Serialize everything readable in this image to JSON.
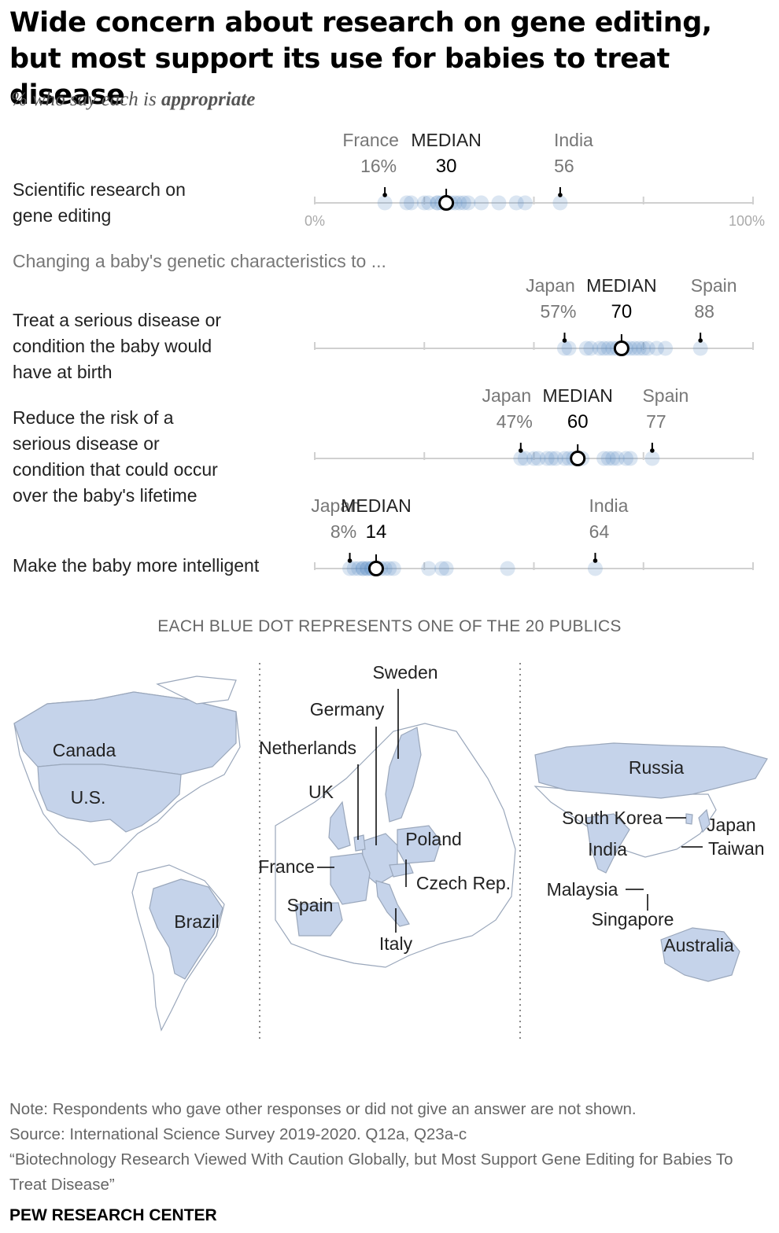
{
  "title": "Wide concern about research on gene editing, but most support its use for babies to treat disease",
  "subtitle_prefix": "% who say each is ",
  "subtitle_emph": "appropriate",
  "group_label": "Changing a baby's genetic characteristics to ...",
  "chart_caption": "EACH BLUE DOT REPRESENTS ONE OF THE 20 PUBLICS",
  "colors": {
    "dot": "#5b8ec4",
    "median_stroke": "#000000",
    "axis": "#d0d0d0",
    "map_fill": "#c5d3ea",
    "map_stroke": "#9aa7bb"
  },
  "chart_data": {
    "type": "scatter",
    "xlim": [
      0,
      100
    ],
    "axis_tick_labels": [
      "0%",
      "100%"
    ],
    "median_label": "MEDIAN",
    "rows": [
      {
        "label_lines": [
          "Scientific research on",
          "gene editing"
        ],
        "low": {
          "country": "France",
          "value_label": "16%",
          "value": 16
        },
        "median": {
          "value_label": "30",
          "value": 30
        },
        "high": {
          "country": "India",
          "value_label": "56",
          "value": 56
        },
        "values": [
          16,
          21,
          22,
          25,
          26,
          28,
          29,
          30,
          30,
          31,
          32,
          33,
          34,
          35,
          38,
          42,
          46,
          48,
          56,
          28
        ]
      },
      {
        "label_lines": [
          "Treat a serious disease or",
          "condition the baby would",
          "have at birth"
        ],
        "low": {
          "country": "Japan",
          "value_label": "57%",
          "value": 57
        },
        "median": {
          "value_label": "70",
          "value": 70
        },
        "high": {
          "country": "Spain",
          "value_label": "88",
          "value": 88
        },
        "values": [
          57,
          58,
          62,
          63,
          65,
          66,
          67,
          68,
          69,
          70,
          70,
          71,
          72,
          73,
          74,
          75,
          76,
          78,
          80,
          88
        ]
      },
      {
        "label_lines": [
          "Reduce the risk of a",
          "serious disease or",
          "condition that could occur",
          "over the baby's lifetime"
        ],
        "low": {
          "country": "Japan",
          "value_label": "47%",
          "value": 47
        },
        "median": {
          "value_label": "60",
          "value": 60
        },
        "high": {
          "country": "Spain",
          "value_label": "77",
          "value": 77
        },
        "values": [
          47,
          48,
          50,
          51,
          53,
          54,
          57,
          58,
          59,
          60,
          60,
          61,
          66,
          67,
          68,
          69,
          71,
          72,
          77,
          55
        ]
      },
      {
        "label_lines": [
          "Make the baby more intelligent"
        ],
        "low": {
          "country": "Japan",
          "value_label": "8%",
          "value": 8
        },
        "median": {
          "value_label": "14",
          "value": 14
        },
        "high": {
          "country": "India",
          "value_label": "64",
          "value": 64
        },
        "values": [
          8,
          9,
          10,
          11,
          11,
          12,
          12,
          13,
          14,
          14,
          15,
          16,
          17,
          18,
          26,
          29,
          30,
          44,
          64,
          13
        ]
      }
    ]
  },
  "maps": {
    "americas": [
      "Canada",
      "U.S.",
      "Brazil"
    ],
    "europe": [
      "Sweden",
      "Germany",
      "Netherlands",
      "UK",
      "Poland",
      "France",
      "Czech Rep.",
      "Spain",
      "Italy"
    ],
    "asia_pacific": [
      "Russia",
      "South Korea",
      "Japan",
      "India",
      "Taiwan",
      "Malaysia",
      "Singapore",
      "Australia"
    ]
  },
  "notes": [
    "Note: Respondents who gave other responses or did not give an answer are not shown.",
    "Source: International Science Survey 2019-2020. Q12a, Q23a-c",
    "“Biotechnology Research Viewed With Caution Globally, but Most Support Gene Editing for Babies To Treat Disease”"
  ],
  "source": "PEW RESEARCH CENTER"
}
